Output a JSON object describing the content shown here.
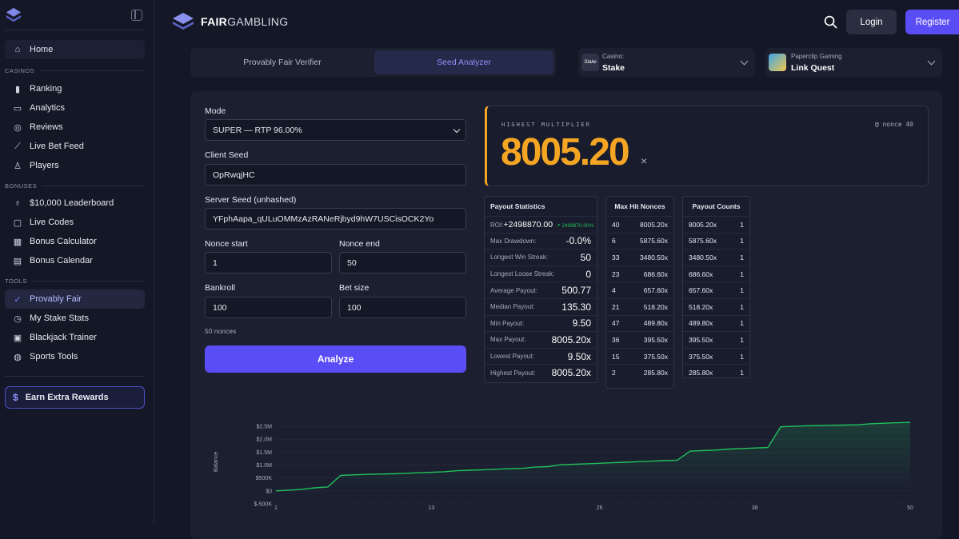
{
  "sidebar": {
    "items_top": [
      {
        "label": "Home",
        "icon": "home-icon"
      }
    ],
    "sections": {
      "casinos": "CASINOS",
      "bonuses": "BONUSES",
      "tools": "TOOLS"
    },
    "casinos": [
      {
        "label": "Ranking",
        "icon": "ranking-icon"
      },
      {
        "label": "Analytics",
        "icon": "analytics-icon"
      },
      {
        "label": "Reviews",
        "icon": "reviews-icon"
      },
      {
        "label": "Live Bet Feed",
        "icon": "trend-icon"
      },
      {
        "label": "Players",
        "icon": "user-icon"
      }
    ],
    "bonuses": [
      {
        "label": "$10,000 Leaderboard",
        "icon": "trophy-icon"
      },
      {
        "label": "Live Codes",
        "icon": "ticket-icon"
      },
      {
        "label": "Bonus Calculator",
        "icon": "calculator-icon"
      },
      {
        "label": "Bonus Calendar",
        "icon": "calendar-icon"
      }
    ],
    "tools": [
      {
        "label": "Provably Fair",
        "icon": "check-icon",
        "active": true
      },
      {
        "label": "My Stake Stats",
        "icon": "clock-icon"
      },
      {
        "label": "Blackjack Trainer",
        "icon": "cards-icon"
      },
      {
        "label": "Sports Tools",
        "icon": "globe-icon"
      }
    ],
    "extra": {
      "label": "Earn Extra Rewards",
      "icon": "dollar-icon"
    }
  },
  "header": {
    "brand_bold": "FAIR",
    "brand_rest": "GAMBLING",
    "login": "Login",
    "register": "Register"
  },
  "tabs": [
    {
      "label": "Provably Fair Verifier"
    },
    {
      "label": "Seed Analyzer",
      "active": true
    }
  ],
  "casino_select": {
    "label": "Casino:",
    "value": "Stake",
    "logo_text": "Stake"
  },
  "game_select": {
    "label": "Paperclip Gaming",
    "value": "Link Quest"
  },
  "form": {
    "mode_label": "Mode",
    "mode_value": "SUPER — RTP 96.00%",
    "client_seed_label": "Client Seed",
    "client_seed": "OpRwqjHC",
    "server_seed_label": "Server Seed (unhashed)",
    "server_seed": "YFphAapa_qULuOMMzAzRANeRjbyd9hW7USCisOCK2Yo",
    "nonce_start_label": "Nonce start",
    "nonce_start": "1",
    "nonce_end_label": "Nonce end",
    "nonce_end": "50",
    "bankroll_label": "Bankroll",
    "bankroll": "100",
    "bet_size_label": "Bet size",
    "bet_size": "100",
    "nonce_count": "50 nonces",
    "analyze": "Analyze"
  },
  "highest": {
    "label": "HIGHEST MULTIPLIER",
    "nonce": "@ nonce 40",
    "value": "8005.20",
    "suffix": "×"
  },
  "payout_stats": {
    "title": "Payout Statistics",
    "roi_label": "ROI:",
    "roi_value": "+2498870.00",
    "roi_delta": "↗ 2498870.00%",
    "rows": [
      {
        "label": "Max Drawdown:",
        "value": "-0.0%"
      },
      {
        "label": "Longest Win Streak:",
        "value": "50"
      },
      {
        "label": "Longest Loose Streak:",
        "value": "0"
      },
      {
        "label": "Average Payout:",
        "value": "500.77"
      },
      {
        "label": "Median Payout:",
        "value": "135.30"
      },
      {
        "label": "Min Payout:",
        "value": "9.50"
      },
      {
        "label": "Max Payout:",
        "value": "8005.20x"
      },
      {
        "label": "Lowest Payout:",
        "value": "9.50x"
      },
      {
        "label": "Highest Payout:",
        "value": "8005.20x"
      }
    ]
  },
  "max_hit": {
    "title": "Max Hit Nonces",
    "rows": [
      {
        "nonce": "40",
        "payout": "8005.20x"
      },
      {
        "nonce": "6",
        "payout": "5875.60x"
      },
      {
        "nonce": "33",
        "payout": "3480.50x"
      },
      {
        "nonce": "23",
        "payout": "686.60x"
      },
      {
        "nonce": "4",
        "payout": "657.60x"
      },
      {
        "nonce": "21",
        "payout": "518.20x"
      },
      {
        "nonce": "47",
        "payout": "489.80x"
      },
      {
        "nonce": "36",
        "payout": "395.50x"
      },
      {
        "nonce": "15",
        "payout": "375.50x"
      },
      {
        "nonce": "2",
        "payout": "285.80x"
      }
    ]
  },
  "payout_counts": {
    "title": "Payout Counts",
    "rows": [
      {
        "payout": "8005.20x",
        "count": "1"
      },
      {
        "payout": "5875.60x",
        "count": "1"
      },
      {
        "payout": "3480.50x",
        "count": "1"
      },
      {
        "payout": "686.60x",
        "count": "1"
      },
      {
        "payout": "657.60x",
        "count": "1"
      },
      {
        "payout": "518.20x",
        "count": "1"
      },
      {
        "payout": "489.80x",
        "count": "1"
      },
      {
        "payout": "395.50x",
        "count": "1"
      },
      {
        "payout": "375.50x",
        "count": "1"
      },
      {
        "payout": "285.80x",
        "count": "1"
      }
    ]
  },
  "chart_data": {
    "type": "line",
    "ylabel": "Balance",
    "yticks": [
      "$-500K",
      "$0",
      "$500K",
      "$1.0M",
      "$1.5M",
      "$2.0M",
      "$2.5M"
    ],
    "ytick_values": [
      -500000,
      0,
      500000,
      1000000,
      1500000,
      2000000,
      2500000
    ],
    "xticks": [
      "1",
      "13",
      "26",
      "38",
      "50"
    ],
    "xtick_values": [
      1,
      13,
      26,
      38,
      50
    ],
    "xlim": [
      1,
      50
    ],
    "ylim": [
      -500000,
      2750000
    ],
    "grid": true,
    "color": "#21c15b",
    "series": [
      {
        "x": [
          1,
          2,
          3,
          4,
          5,
          6,
          7,
          8,
          9,
          10,
          11,
          12,
          13,
          14,
          15,
          16,
          17,
          18,
          19,
          20,
          21,
          22,
          23,
          24,
          25,
          26,
          27,
          28,
          29,
          30,
          31,
          32,
          33,
          34,
          35,
          36,
          37,
          38,
          39,
          40,
          41,
          42,
          43,
          44,
          45,
          46,
          47,
          48,
          49,
          50
        ],
        "y": [
          0,
          30000,
          60000,
          120000,
          150000,
          600000,
          620000,
          640000,
          650000,
          660000,
          680000,
          700000,
          720000,
          740000,
          780000,
          800000,
          820000,
          840000,
          860000,
          870000,
          920000,
          940000,
          1010000,
          1030000,
          1050000,
          1070000,
          1090000,
          1110000,
          1130000,
          1150000,
          1170000,
          1190000,
          1540000,
          1560000,
          1580000,
          1620000,
          1640000,
          1660000,
          1680000,
          2480000,
          2500000,
          2520000,
          2530000,
          2540000,
          2550000,
          2560000,
          2600000,
          2620000,
          2640000,
          2650000
        ]
      }
    ]
  }
}
